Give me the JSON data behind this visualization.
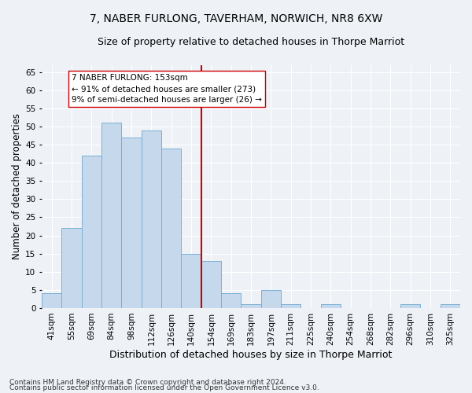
{
  "title": "7, NABER FURLONG, TAVERHAM, NORWICH, NR8 6XW",
  "subtitle": "Size of property relative to detached houses in Thorpe Marriot",
  "xlabel": "Distribution of detached houses by size in Thorpe Marriot",
  "ylabel": "Number of detached properties",
  "bin_labels": [
    "41sqm",
    "55sqm",
    "69sqm",
    "84sqm",
    "98sqm",
    "112sqm",
    "126sqm",
    "140sqm",
    "154sqm",
    "169sqm",
    "183sqm",
    "197sqm",
    "211sqm",
    "225sqm",
    "240sqm",
    "254sqm",
    "268sqm",
    "282sqm",
    "296sqm",
    "310sqm",
    "325sqm"
  ],
  "bar_values": [
    4,
    22,
    42,
    51,
    47,
    49,
    44,
    15,
    13,
    4,
    1,
    5,
    1,
    0,
    1,
    0,
    0,
    0,
    1,
    0,
    1
  ],
  "bar_color": "#c6d9ec",
  "bar_edge_color": "#7aafd4",
  "vline_x_idx": 8,
  "vline_color": "#cc0000",
  "annotation_box_text": "7 NABER FURLONG: 153sqm\n← 91% of detached houses are smaller (273)\n9% of semi-detached houses are larger (26) →",
  "annotation_fontsize": 7.5,
  "ylim": [
    0,
    67
  ],
  "yticks": [
    0,
    5,
    10,
    15,
    20,
    25,
    30,
    35,
    40,
    45,
    50,
    55,
    60,
    65
  ],
  "title_fontsize": 10,
  "subtitle_fontsize": 9,
  "xlabel_fontsize": 9,
  "ylabel_fontsize": 8.5,
  "tick_fontsize": 7.5,
  "footer_line1": "Contains HM Land Registry data © Crown copyright and database right 2024.",
  "footer_line2": "Contains public sector information licensed under the Open Government Licence v3.0.",
  "footer_fontsize": 6.5,
  "background_color": "#eef2f7",
  "grid_color": "#ffffff"
}
